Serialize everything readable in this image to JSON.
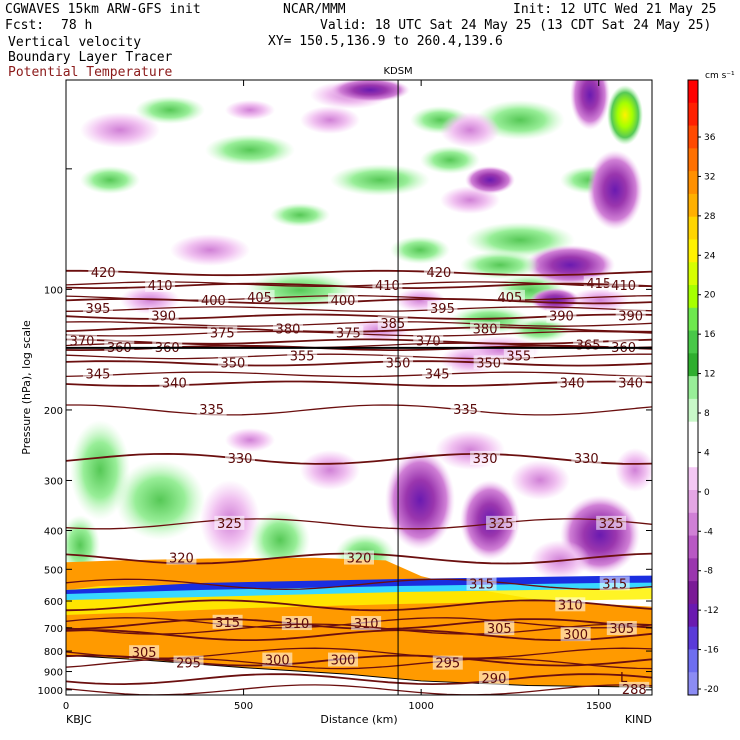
{
  "header": {
    "model": "CGWAVES 15km ARW-GFS init",
    "fcst_label": "Fcst:",
    "fcst_value": "78 h",
    "org": "NCAR/MMM",
    "init": "Init: 12 UTC Wed 21 May 25",
    "valid": "Valid: 18 UTC Sat 24 May 25 (13 CDT Sat 24 May 25)",
    "xy": "XY= 150.5,136.9 to 260.4,139.6",
    "field1": "Vertical velocity",
    "field2": "Boundary Layer Tracer",
    "field3": "Potential Temperature"
  },
  "colors": {
    "theta_contour": "#6b0f0f",
    "theta_label": "#5a0a0a",
    "field3_text": "#8b1a1a"
  },
  "chart_data": {
    "type": "heatmap",
    "title": "",
    "xlabel": "Distance (km)",
    "ylabel": "Pressure (hPa), log scale",
    "xlim": [
      0,
      1650
    ],
    "ylim": [
      1030,
      30
    ],
    "y_scale": "log",
    "x_ticks": [
      0,
      500,
      1000,
      1500
    ],
    "y_ticks": [
      100,
      200,
      300,
      400,
      500,
      600,
      700,
      800,
      900,
      1000
    ],
    "endpoints": {
      "left": "KBJC",
      "right": "KIND"
    },
    "marker": {
      "label": "KDSM",
      "x_km": 935
    },
    "colorbar": {
      "units": "cm s⁻¹",
      "labels": [
        "36",
        "32",
        "28",
        "24",
        "20",
        "16",
        "12",
        "8",
        "4",
        "0",
        "-4",
        "-8",
        "-12",
        "-16",
        "-20"
      ],
      "colors": [
        "#ff0000",
        "#ff2000",
        "#ff4a00",
        "#ff7000",
        "#ff9000",
        "#ffb000",
        "#ffd500",
        "#fff200",
        "#d6ff00",
        "#a6ff00",
        "#6ee84e",
        "#48c848",
        "#2fae2f",
        "#98ee98",
        "#c8f8c8",
        "#ffffff",
        "#ffffff",
        "#f4c8f4",
        "#e4a6e4",
        "#d080d6",
        "#b858c4",
        "#9a36ae",
        "#7a1a96",
        "#6a1ab0",
        "#5a3ad8",
        "#6e6ef0",
        "#8c8cf4"
      ]
    },
    "theta_contours": [
      {
        "value": 420,
        "p": 91,
        "labels": [
          {
            "x_km": 105,
            "text": "420"
          },
          {
            "x_km": 1050,
            "text": "420"
          }
        ]
      },
      {
        "value": 415,
        "p": 97,
        "labels": [
          {
            "x_km": 1500,
            "text": "415"
          }
        ]
      },
      {
        "value": 410,
        "p": 98,
        "labels": [
          {
            "x_km": 265,
            "text": "410"
          },
          {
            "x_km": 905,
            "text": "410"
          },
          {
            "x_km": 1570,
            "text": "410"
          }
        ]
      },
      {
        "value": 405,
        "p": 105,
        "labels": [
          {
            "x_km": 545,
            "text": "405"
          },
          {
            "x_km": 1250,
            "text": "405"
          }
        ]
      },
      {
        "value": 400,
        "p": 107,
        "labels": [
          {
            "x_km": 415,
            "text": "400"
          },
          {
            "x_km": 780,
            "text": "400"
          }
        ]
      },
      {
        "value": 395,
        "p": 112,
        "labels": [
          {
            "x_km": 90,
            "text": "395"
          },
          {
            "x_km": 1060,
            "text": "395"
          }
        ]
      },
      {
        "value": 390,
        "p": 117,
        "labels": [
          {
            "x_km": 275,
            "text": "390"
          },
          {
            "x_km": 1395,
            "text": "390"
          },
          {
            "x_km": 1590,
            "text": "390"
          }
        ]
      },
      {
        "value": 385,
        "p": 122,
        "labels": [
          {
            "x_km": 920,
            "text": "385"
          }
        ]
      },
      {
        "value": 380,
        "p": 126,
        "labels": [
          {
            "x_km": 625,
            "text": "380"
          },
          {
            "x_km": 1180,
            "text": "380"
          }
        ]
      },
      {
        "value": 375,
        "p": 129,
        "labels": [
          {
            "x_km": 440,
            "text": "375"
          },
          {
            "x_km": 795,
            "text": "375"
          }
        ]
      },
      {
        "value": 370,
        "p": 135,
        "labels": [
          {
            "x_km": 45,
            "text": "370"
          },
          {
            "x_km": 1020,
            "text": "370"
          }
        ]
      },
      {
        "value": 365,
        "p": 138,
        "labels": [
          {
            "x_km": 1470,
            "text": "365"
          }
        ]
      },
      {
        "value": 360,
        "p": 140,
        "labels": [
          {
            "x_km": 150,
            "text": "360"
          },
          {
            "x_km": 285,
            "text": "360"
          },
          {
            "x_km": 1570,
            "text": "360"
          }
        ]
      },
      {
        "value": 355,
        "p": 147,
        "labels": [
          {
            "x_km": 665,
            "text": "355"
          },
          {
            "x_km": 1275,
            "text": "355"
          }
        ]
      },
      {
        "value": 350,
        "p": 153,
        "labels": [
          {
            "x_km": 470,
            "text": "350"
          },
          {
            "x_km": 935,
            "text": "350"
          },
          {
            "x_km": 1190,
            "text": "350"
          }
        ]
      },
      {
        "value": 345,
        "p": 163,
        "labels": [
          {
            "x_km": 90,
            "text": "345"
          },
          {
            "x_km": 1045,
            "text": "345"
          }
        ]
      },
      {
        "value": 340,
        "p": 172,
        "labels": [
          {
            "x_km": 305,
            "text": "340"
          },
          {
            "x_km": 1425,
            "text": "340"
          },
          {
            "x_km": 1590,
            "text": "340"
          }
        ]
      },
      {
        "value": 335,
        "p": 200,
        "labels": [
          {
            "x_km": 410,
            "text": "335"
          },
          {
            "x_km": 1125,
            "text": "335"
          }
        ]
      },
      {
        "value": 330,
        "p": 265,
        "labels": [
          {
            "x_km": 490,
            "text": "330"
          },
          {
            "x_km": 1180,
            "text": "330"
          },
          {
            "x_km": 1465,
            "text": "330"
          }
        ]
      },
      {
        "value": 325,
        "p": 385,
        "labels": [
          {
            "x_km": 460,
            "text": "325"
          },
          {
            "x_km": 1225,
            "text": "325"
          },
          {
            "x_km": 1535,
            "text": "325"
          }
        ]
      },
      {
        "value": 320,
        "p": 470,
        "labels": [
          {
            "x_km": 325,
            "text": "320"
          },
          {
            "x_km": 825,
            "text": "320"
          }
        ]
      },
      {
        "value": 315,
        "p": 545,
        "labels": [
          {
            "x_km": 1170,
            "text": "315"
          },
          {
            "x_km": 1545,
            "text": "315"
          }
        ]
      },
      {
        "value": 310,
        "p": 615,
        "labels": [
          {
            "x_km": 1420,
            "text": "310"
          }
        ]
      },
      {
        "value": 315,
        "p": 680,
        "labels": [
          {
            "x_km": 455,
            "text": "315"
          }
        ]
      },
      {
        "value": 310,
        "p": 685,
        "labels": [
          {
            "x_km": 650,
            "text": "310"
          },
          {
            "x_km": 845,
            "text": "310"
          }
        ]
      },
      {
        "value": 305,
        "p": 705,
        "labels": [
          {
            "x_km": 1220,
            "text": "305"
          },
          {
            "x_km": 1565,
            "text": "305"
          }
        ]
      },
      {
        "value": 300,
        "p": 730,
        "labels": [
          {
            "x_km": 1435,
            "text": "300"
          }
        ]
      },
      {
        "value": 305,
        "p": 810,
        "labels": [
          {
            "x_km": 220,
            "text": "305"
          }
        ]
      },
      {
        "value": 300,
        "p": 845,
        "labels": [
          {
            "x_km": 595,
            "text": "300"
          },
          {
            "x_km": 780,
            "text": "300"
          }
        ]
      },
      {
        "value": 295,
        "p": 860,
        "labels": [
          {
            "x_km": 345,
            "text": "295"
          },
          {
            "x_km": 1075,
            "text": "295"
          }
        ]
      },
      {
        "value": 290,
        "p": 940,
        "labels": [
          {
            "x_km": 1205,
            "text": "290"
          }
        ]
      },
      {
        "value": 288,
        "p": 1000,
        "labels": [
          {
            "x_km": 1600,
            "text": "288"
          }
        ]
      }
    ],
    "low_label": {
      "text": "L",
      "x_km": 1570,
      "p": 955
    },
    "terrain_surface": [
      {
        "x_km": 0,
        "p": 820
      },
      {
        "x_km": 200,
        "p": 840
      },
      {
        "x_km": 500,
        "p": 880
      },
      {
        "x_km": 800,
        "p": 915
      },
      {
        "x_km": 1000,
        "p": 950
      },
      {
        "x_km": 1300,
        "p": 975
      },
      {
        "x_km": 1650,
        "p": 985
      }
    ],
    "tropopause_p": 140
  }
}
